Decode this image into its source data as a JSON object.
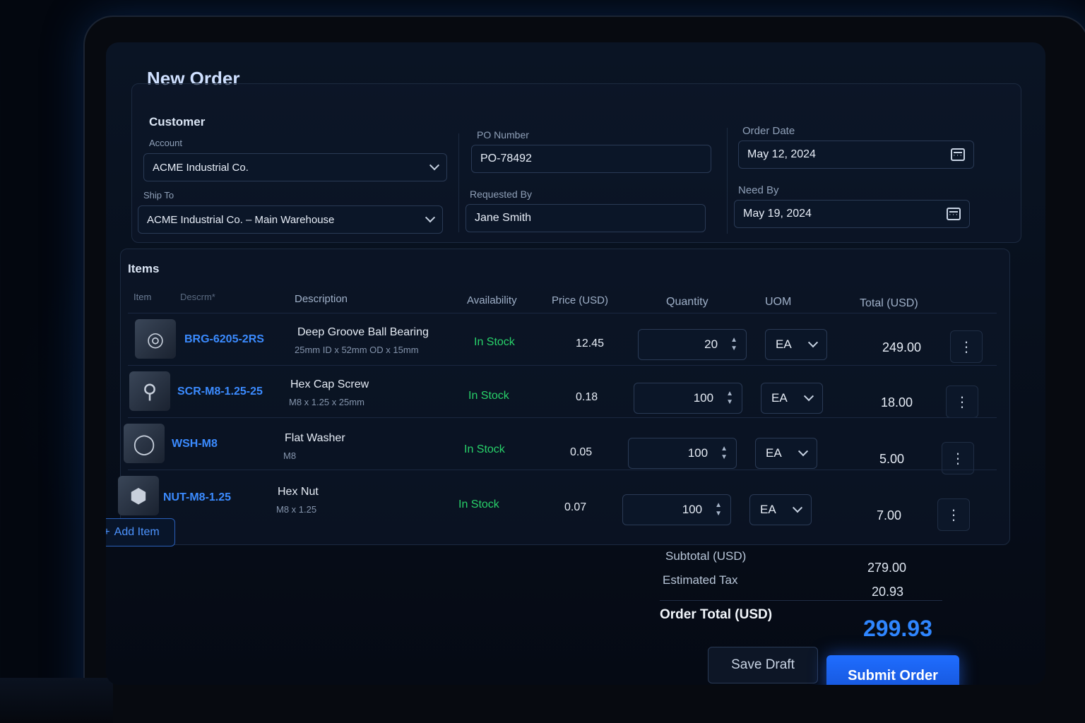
{
  "header": {
    "title": "New Order"
  },
  "customer": {
    "section_title": "Customer",
    "account_label": "Account",
    "account_value": "ACME Industrial Co.",
    "shipto_label": "Ship To",
    "shipto_value": "ACME Industrial Co. – Main Warehouse"
  },
  "po": {
    "po_label": "PO Number",
    "po_value": "PO-78492",
    "requested_label": "Requested By",
    "requested_value": "Jane Smith"
  },
  "dates": {
    "order_label": "Order Date",
    "order_value": "May 12, 2024",
    "need_label": "Need By",
    "need_value": "May 19, 2024"
  },
  "items": {
    "section_title": "Items",
    "columns": {
      "item": "Item",
      "description_short": "Descrm*",
      "description": "Description",
      "availability": "Availability",
      "price": "Price (USD)",
      "quantity": "Quantity",
      "uom": "UOM",
      "total": "Total (USD)"
    },
    "rows": [
      {
        "sku": "BRG-6205-2RS",
        "name": "Deep Groove Ball Bearing",
        "spec": "25mm ID x 52mm OD x 15mm",
        "availability": "In Stock",
        "price": "12.45",
        "qty": "20",
        "uom": "EA",
        "total": "249.00",
        "icon": "bearing-icon"
      },
      {
        "sku": "SCR-M8-1.25-25",
        "name": "Hex Cap Screw",
        "spec": "M8 x 1.25 x 25mm",
        "availability": "In Stock",
        "price": "0.18",
        "qty": "100",
        "uom": "EA",
        "total": "18.00",
        "icon": "screw-icon"
      },
      {
        "sku": "WSH-M8",
        "name": "Flat Washer",
        "spec": "M8",
        "availability": "In Stock",
        "price": "0.05",
        "qty": "100",
        "uom": "EA",
        "total": "5.00",
        "icon": "washer-icon"
      },
      {
        "sku": "NUT-M8-1.25",
        "name": "Hex Nut",
        "spec": "M8 x 1.25",
        "availability": "In Stock",
        "price": "0.07",
        "qty": "100",
        "uom": "EA",
        "total": "7.00",
        "icon": "nut-icon"
      }
    ],
    "add_item_label": "Add Item"
  },
  "summary": {
    "subtotal_label": "Subtotal (USD)",
    "subtotal_value": "279.00",
    "tax_label": "Estimated Tax",
    "tax_value": "20.93",
    "total_label": "Order Total (USD)",
    "total_value": "299.93"
  },
  "actions": {
    "save_draft": "Save Draft",
    "submit": "Submit Order"
  },
  "colors": {
    "accent": "#2f86ff",
    "in_stock": "#28d26a",
    "sku_link": "#3b8bff"
  }
}
